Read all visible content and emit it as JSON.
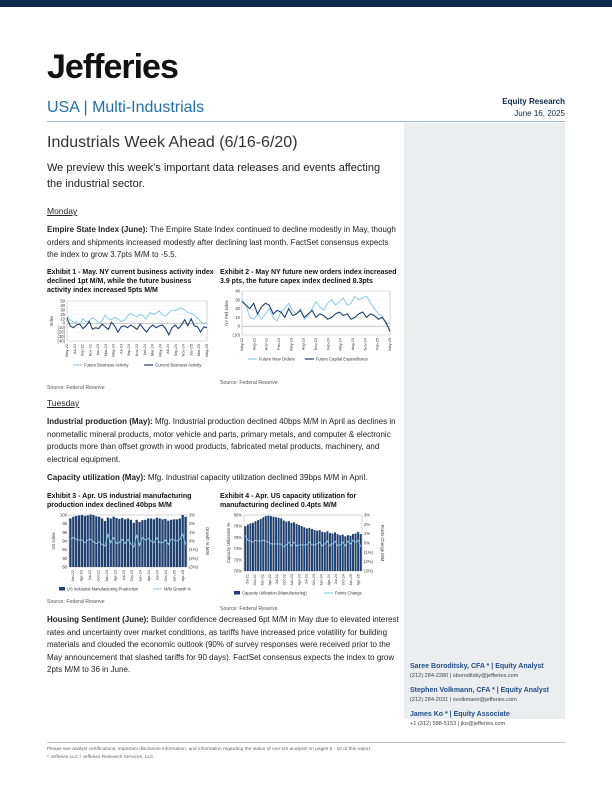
{
  "header": {
    "brand": "Jefferies",
    "sector": "USA | Multi-Industrials",
    "report_type": "Equity Research",
    "date": "June 16, 2025"
  },
  "title": "Industrials Week Ahead (6/16-6/20)",
  "intro": "We preview this week's important data releases and events affecting the industrial sector.",
  "monday": {
    "heading": "Monday",
    "empire_label": "Empire State Index (June):",
    "empire_text": " The Empire State Index continued to decline modestly in May, though orders and shipments increased modestly after declining last month. FactSet consensus expects the index to grow 3.7pts M/M to -5.5."
  },
  "tuesday": {
    "heading": "Tuesday",
    "ip_label": "Industrial production (May):",
    "ip_text": " Mfg. Industrial production declined 40bps M/M in April as declines in nonmetallic mineral products, motor vehicle and parts, primary metals, and computer & electronic products more than offset growth in wood products, fabricated metal products, machinery, and electrical equipment.",
    "cu_label": "Capacity utilization (May):",
    "cu_text": " Mfg. Industrial capacity utilization declined 39bps M/M in April.",
    "housing_label": "Housing Sentiment (June):",
    "housing_text": " Builder confidence decreased 6pt M/M in May due to elevated interest rates and uncertainty over market conditions, as tariffs have increased price volatility for building materials and clouded the economic outlook (90% of survey responses were received prior to the May announcement that slashed tariffs for 90 days). FactSet consensus expects the index to grow 2pts M/M to 36 in June."
  },
  "exhibits": {
    "ex1": {
      "title": "Exhibit 1 - May. NY current business activity index declined 1pt M/M, while the future business activity index increased 5pts M/M",
      "source": "Source: Federal Reserve"
    },
    "ex2": {
      "title": "Exhibit 2 - May NY future new orders index increased 3.9 pts, the future capex index declined 8.3pts",
      "source": "Source: Federal Reserve"
    },
    "ex3": {
      "title": "Exhibit 3 - Apr. US industrial manufacturing production index declined 40bps M/M",
      "source": "Source: Federal Reserve"
    },
    "ex4": {
      "title": "Exhibit 4 - Apr. US capacity utilization for manufacturing declined 0.4pts M/M",
      "source": "Source: Federal Reserve"
    }
  },
  "chart_data": [
    {
      "type": "line",
      "ylabel": "Index",
      "ylim": [
        -40,
        50
      ],
      "yticks": [
        "50",
        "40",
        "30",
        "20",
        "10",
        "0",
        "(10)",
        "(20)",
        "(30)",
        "(40)"
      ],
      "xticks": [
        "May-22",
        "Jul-22",
        "Sep-22",
        "Nov-22",
        "Jan-23",
        "Mar-23",
        "May-23",
        "Jul-23",
        "Sep-23",
        "Nov-23",
        "Jan-24",
        "Mar-24",
        "May-24",
        "Jul-24",
        "Sep-24",
        "Nov-24",
        "Jan-25",
        "Mar-25",
        "May-25"
      ],
      "series": [
        {
          "name": "Future Business Activity",
          "color": "#8ecae6",
          "values": [
            16,
            8,
            2,
            3,
            -2,
            10,
            3,
            6,
            12,
            8,
            0,
            5,
            18,
            10,
            8,
            14,
            10,
            4,
            6,
            16,
            22,
            18,
            14,
            20,
            16,
            10,
            24,
            20,
            22,
            28,
            18,
            16,
            24,
            30,
            28,
            32,
            34,
            30,
            24,
            22,
            18,
            12,
            4,
            -2,
            2
          ]
        },
        {
          "name": "Current Business Activity",
          "color": "#1f3f6e",
          "values": [
            12,
            -6,
            -10,
            -4,
            -2,
            -12,
            -6,
            4,
            -14,
            -10,
            -12,
            -2,
            -8,
            -14,
            2,
            -6,
            -20,
            -8,
            -6,
            -10,
            -4,
            -8,
            -14,
            -2,
            -12,
            -20,
            -10,
            -4,
            -10,
            -6,
            -4,
            -12,
            -26,
            -10,
            -4,
            -12,
            -4,
            8,
            -6,
            10,
            -6,
            -8,
            -20,
            -8,
            -10
          ]
        }
      ]
    },
    {
      "type": "line",
      "ylabel": "NY Fed Index",
      "ylim": [
        -10,
        40
      ],
      "yticks": [
        "40",
        "30",
        "20",
        "10",
        "0",
        "(10)"
      ],
      "xticks": [
        "May-22",
        "Aug-22",
        "Nov-22",
        "Feb-23",
        "May-23",
        "Aug-23",
        "Nov-23",
        "Feb-24",
        "May-24",
        "Aug-24",
        "Nov-24",
        "Feb-25",
        "May-25"
      ],
      "series": [
        {
          "name": "Future New Orders",
          "color": "#8ecae6",
          "values": [
            30,
            24,
            10,
            8,
            14,
            8,
            14,
            20,
            10,
            6,
            16,
            20,
            26,
            18,
            14,
            20,
            8,
            12,
            20,
            28,
            22,
            18,
            26,
            30,
            24,
            28,
            32,
            24,
            26,
            34,
            30,
            32,
            34,
            26,
            20,
            14,
            12,
            2,
            4
          ]
        },
        {
          "name": "Future Capital Expenditures",
          "color": "#1f3f6e",
          "values": [
            28,
            24,
            20,
            26,
            14,
            22,
            26,
            24,
            14,
            18,
            16,
            10,
            20,
            12,
            14,
            18,
            10,
            14,
            18,
            10,
            14,
            12,
            8,
            10,
            14,
            16,
            12,
            14,
            8,
            10,
            14,
            16,
            10,
            14,
            12,
            8,
            10,
            4,
            -6
          ]
        }
      ]
    },
    {
      "type": "bar",
      "ylabel": "US Index",
      "ylabel2": "Growth % M/M",
      "ylim": [
        88,
        100
      ],
      "y2lim": [
        -3,
        3
      ],
      "yticks": [
        "100",
        "98",
        "96",
        "94",
        "92",
        "90",
        "88"
      ],
      "y2ticks": [
        "3%",
        "2%",
        "1%",
        "0%",
        "(1%)",
        "(2%)",
        "(3%)"
      ],
      "xticks": [
        "Jan-22",
        "Apr-22",
        "Jul-22",
        "Oct-22",
        "Jan-23",
        "Apr-23",
        "Jul-23",
        "Oct-23",
        "Jan-24",
        "Apr-24",
        "Jul-24",
        "Oct-24",
        "Jan-25",
        "Apr-25"
      ],
      "series": [
        {
          "name": "US Industrial Manufacturing Production",
          "color": "#1f3f6e",
          "values": [
            99.2,
            99.6,
            99.8,
            99.9,
            100.0,
            99.8,
            99.9,
            100.1,
            100.0,
            99.7,
            99.6,
            99.2,
            98.6,
            99.4,
            99.2,
            99.6,
            99.3,
            99.1,
            99.3,
            99.0,
            99.2,
            98.9,
            98.2,
            98.9,
            98.4,
            98.8,
            98.9,
            99.2,
            99.2,
            99.0,
            99.4,
            99.2,
            99.0,
            99.1,
            98.7,
            98.9,
            99.0,
            99.0,
            99.2,
            100.0,
            99.6
          ]
        },
        {
          "name": "M/M Growth %",
          "color": "#8ecae6",
          "values": [
            0.2,
            0.4,
            0.2,
            0.1,
            0.1,
            -0.2,
            0.1,
            0.2,
            -0.1,
            -0.3,
            -0.1,
            -0.4,
            -0.6,
            0.8,
            -0.2,
            0.4,
            -0.3,
            -0.2,
            0.2,
            -0.3,
            0.2,
            -0.3,
            -0.7,
            0.7,
            -0.5,
            0.4,
            0.1,
            0.3,
            0.0,
            -0.2,
            0.4,
            -0.2,
            -0.2,
            0.1,
            -0.4,
            0.2,
            0.1,
            0.0,
            0.2,
            0.8,
            -0.4
          ]
        }
      ]
    },
    {
      "type": "bar",
      "ylabel": "Capacity Utilization %",
      "ylabel2": "Points Change M/M",
      "ylim": [
        70,
        80
      ],
      "y2lim": [
        -3,
        3
      ],
      "yticks": [
        "80%",
        "78%",
        "76%",
        "74%",
        "72%",
        "70%"
      ],
      "y2ticks": [
        "3%",
        "2%",
        "1%",
        "0%",
        "(1%)",
        "(2%)",
        "(3%)"
      ],
      "xticks": [
        "Jul-21",
        "Oct-21",
        "Jan-22",
        "Apr-22",
        "Jul-22",
        "Oct-22",
        "Jan-23",
        "Apr-23",
        "Jul-23",
        "Oct-23",
        "Jan-24",
        "Apr-24",
        "Jul-24",
        "Oct-24",
        "Jan-25",
        "Apr-25"
      ],
      "series": [
        {
          "name": "Capacity Utilization (Manufacturing)",
          "color": "#1f3f6e",
          "values": [
            78.0,
            78.3,
            78.5,
            78.6,
            78.9,
            79.1,
            79.3,
            79.6,
            79.8,
            79.9,
            79.8,
            79.7,
            79.6,
            79.5,
            79.4,
            79.0,
            78.8,
            78.9,
            78.6,
            78.7,
            78.4,
            78.2,
            78.0,
            77.8,
            77.6,
            77.7,
            77.5,
            77.3,
            77.2,
            77.3,
            77.0,
            76.9,
            77.1,
            76.8,
            76.7,
            76.9,
            76.6,
            76.4,
            76.5,
            76.2,
            76.4,
            76.3,
            76.6,
            76.7,
            77.0,
            76.6
          ]
        },
        {
          "name": "Points Change",
          "color": "#8ecae6",
          "values": [
            0.8,
            0.3,
            0.2,
            0.1,
            0.3,
            0.2,
            0.2,
            0.3,
            0.2,
            0.1,
            -0.1,
            -0.1,
            -0.1,
            -0.1,
            -0.1,
            -0.4,
            -0.2,
            0.1,
            -0.3,
            0.1,
            -0.3,
            -0.2,
            -0.2,
            -0.2,
            -0.2,
            0.1,
            -0.2,
            -0.2,
            -0.1,
            0.1,
            -0.3,
            -0.1,
            0.2,
            -0.3,
            -0.1,
            0.2,
            -0.3,
            -0.2,
            0.1,
            -0.3,
            0.2,
            -0.1,
            0.3,
            0.1,
            0.3,
            -0.4
          ]
        }
      ]
    }
  ],
  "analysts": [
    {
      "name": "Saree Boroditsky, CFA * | Equity Analyst",
      "contact": "(212) 284-2280 | sboroditsky@jefferies.com"
    },
    {
      "name": "Stephen Volkmann, CFA * | Equity Analyst",
      "contact": "(212) 284-2031 | svolkmann@jefferies.com"
    },
    {
      "name": "James Ko * | Equity Associate",
      "contact": "+1 (312) 588-5153 | jko@jefferies.com"
    }
  ],
  "footer": {
    "line1": "Please see analyst certifications, important disclosure information, and information regarding the status of non-US analysts on pages  5 - 10 of this report.",
    "line2": "* Jefferies LLC / Jefferies Research Services, LLC"
  }
}
